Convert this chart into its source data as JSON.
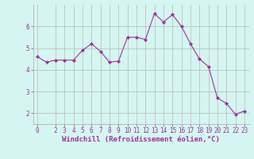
{
  "x": [
    0,
    1,
    2,
    3,
    4,
    5,
    6,
    7,
    8,
    9,
    10,
    11,
    12,
    13,
    14,
    15,
    16,
    17,
    18,
    19,
    20,
    21,
    22,
    23
  ],
  "y": [
    4.6,
    4.35,
    4.45,
    4.45,
    4.45,
    4.9,
    5.2,
    4.85,
    4.35,
    4.4,
    5.5,
    5.5,
    5.4,
    6.6,
    6.2,
    6.55,
    6.0,
    5.2,
    4.5,
    4.15,
    2.7,
    2.45,
    1.95,
    2.1
  ],
  "line_color": "#993399",
  "marker": "D",
  "marker_size": 2,
  "bg_color": "#d5f5f0",
  "grid_color": "#aaaaaa",
  "xlabel": "Windchill (Refroidissement éolien,°C)",
  "ylim": [
    1.5,
    7.0
  ],
  "xlim": [
    -0.5,
    23.5
  ],
  "yticks": [
    2,
    3,
    4,
    5,
    6
  ],
  "xticks": [
    0,
    2,
    3,
    4,
    5,
    6,
    7,
    8,
    9,
    10,
    11,
    12,
    13,
    14,
    15,
    16,
    17,
    18,
    19,
    20,
    21,
    22,
    23
  ],
  "font_color": "#993399",
  "tick_fontsize": 5.5,
  "label_fontsize": 6.5
}
